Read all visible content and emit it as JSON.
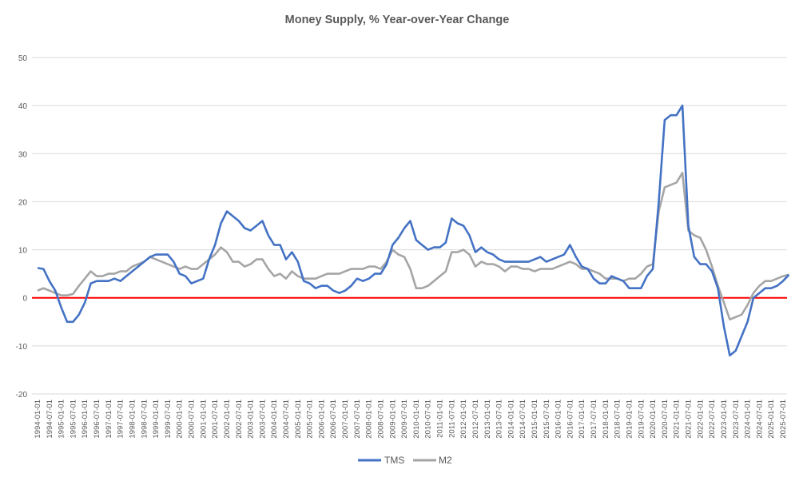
{
  "chart_data": {
    "type": "line",
    "title": "Money Supply, % Year-over-Year Change",
    "xlabel": "",
    "ylabel": "",
    "ylim": [
      -20,
      50
    ],
    "yticks": [
      -20,
      -10,
      0,
      10,
      20,
      30,
      40,
      50
    ],
    "grid": true,
    "legend": "bottom",
    "reference_line": {
      "y": 0,
      "color": "#FF0000"
    },
    "xtick_labels": [
      "1994-01-01",
      "1994-07-01",
      "1995-01-01",
      "1995-07-01",
      "1996-01-01",
      "1996-07-01",
      "1997-01-01",
      "1997-07-01",
      "1998-01-01",
      "1998-07-01",
      "1999-01-01",
      "1999-07-01",
      "2000-01-01",
      "2000-07-01",
      "2001-01-01",
      "2001-07-01",
      "2002-01-01",
      "2002-07-01",
      "2003-01-01",
      "2003-07-01",
      "2004-01-01",
      "2004-07-01",
      "2005-01-01",
      "2005-07-01",
      "2006-01-01",
      "2006-07-01",
      "2007-01-01",
      "2007-07-01",
      "2008-01-01",
      "2008-07-01",
      "2009-01-01",
      "2009-07-01",
      "2010-01-01",
      "2010-07-01",
      "2011-01-01",
      "2011-07-01",
      "2012-01-01",
      "2012-07-01",
      "2013-01-01",
      "2013-07-01",
      "2014-01-01",
      "2014-07-01",
      "2015-01-01",
      "2015-07-01",
      "2016-01-01",
      "2016-07-01",
      "2017-01-01",
      "2017-07-01",
      "2018-01-01",
      "2018-07-01",
      "2019-01-01",
      "2019-07-01",
      "2020-01-01",
      "2020-07-01",
      "2021-01-01",
      "2021-07-01",
      "2022-01-01",
      "2022-07-01",
      "2023-01-01",
      "2023-07-01",
      "2024-01-01",
      "2024-07-01",
      "2025-01-01",
      "2025-07-01"
    ],
    "x": [
      "1994-01-01",
      "1994-04-01",
      "1994-07-01",
      "1994-10-01",
      "1995-01-01",
      "1995-04-01",
      "1995-07-01",
      "1995-10-01",
      "1996-01-01",
      "1996-04-01",
      "1996-07-01",
      "1996-10-01",
      "1997-01-01",
      "1997-04-01",
      "1997-07-01",
      "1997-10-01",
      "1998-01-01",
      "1998-04-01",
      "1998-07-01",
      "1998-10-01",
      "1999-01-01",
      "1999-04-01",
      "1999-07-01",
      "1999-10-01",
      "2000-01-01",
      "2000-04-01",
      "2000-07-01",
      "2000-10-01",
      "2001-01-01",
      "2001-04-01",
      "2001-07-01",
      "2001-10-01",
      "2002-01-01",
      "2002-04-01",
      "2002-07-01",
      "2002-10-01",
      "2003-01-01",
      "2003-04-01",
      "2003-07-01",
      "2003-10-01",
      "2004-01-01",
      "2004-04-01",
      "2004-07-01",
      "2004-10-01",
      "2005-01-01",
      "2005-04-01",
      "2005-07-01",
      "2005-10-01",
      "2006-01-01",
      "2006-04-01",
      "2006-07-01",
      "2006-10-01",
      "2007-01-01",
      "2007-04-01",
      "2007-07-01",
      "2007-10-01",
      "2008-01-01",
      "2008-04-01",
      "2008-07-01",
      "2008-10-01",
      "2009-01-01",
      "2009-04-01",
      "2009-07-01",
      "2009-10-01",
      "2010-01-01",
      "2010-04-01",
      "2010-07-01",
      "2010-10-01",
      "2011-01-01",
      "2011-04-01",
      "2011-07-01",
      "2011-10-01",
      "2012-01-01",
      "2012-04-01",
      "2012-07-01",
      "2012-10-01",
      "2013-01-01",
      "2013-04-01",
      "2013-07-01",
      "2013-10-01",
      "2014-01-01",
      "2014-04-01",
      "2014-07-01",
      "2014-10-01",
      "2015-01-01",
      "2015-04-01",
      "2015-07-01",
      "2015-10-01",
      "2016-01-01",
      "2016-04-01",
      "2016-07-01",
      "2016-10-01",
      "2017-01-01",
      "2017-04-01",
      "2017-07-01",
      "2017-10-01",
      "2018-01-01",
      "2018-04-01",
      "2018-07-01",
      "2018-10-01",
      "2019-01-01",
      "2019-04-01",
      "2019-07-01",
      "2019-10-01",
      "2020-01-01",
      "2020-04-01",
      "2020-07-01",
      "2020-10-01",
      "2021-01-01",
      "2021-04-01",
      "2021-07-01",
      "2021-10-01",
      "2022-01-01",
      "2022-04-01",
      "2022-07-01",
      "2022-10-01",
      "2023-01-01",
      "2023-04-01",
      "2023-07-01",
      "2023-10-01",
      "2024-01-01",
      "2024-04-01",
      "2024-07-01",
      "2024-10-01",
      "2025-01-01",
      "2025-04-01",
      "2025-07-01",
      "2025-10-01"
    ],
    "series": [
      {
        "name": "TMS",
        "color": "#4472C4",
        "values": [
          6.2,
          6,
          3.5,
          1.5,
          -2,
          -5,
          -5,
          -3.5,
          -1,
          3,
          3.5,
          3.5,
          3.5,
          4,
          3.5,
          4.5,
          5.5,
          6.5,
          7.5,
          8.5,
          9,
          9,
          9,
          7.5,
          5,
          4.5,
          3,
          3.5,
          4,
          8,
          11,
          15.5,
          18,
          17,
          16,
          14.5,
          14,
          15,
          16,
          13,
          11,
          11,
          8,
          9.5,
          7.5,
          3.5,
          3,
          2,
          2.5,
          2.5,
          1.5,
          1,
          1.5,
          2.5,
          4,
          3.5,
          4,
          5,
          5,
          7,
          11,
          12.5,
          14.5,
          16,
          12,
          11,
          10,
          10.5,
          10.5,
          11.5,
          16.5,
          15.5,
          15,
          13,
          9.5,
          10.5,
          9.5,
          9,
          8,
          7.5,
          7.5,
          7.5,
          7.5,
          7.5,
          8,
          8.5,
          7.5,
          8,
          8.5,
          9,
          11,
          8.5,
          6.5,
          6,
          4,
          3,
          3,
          4.5,
          4,
          3.5,
          2,
          2,
          2,
          4.5,
          6,
          20,
          37,
          38,
          38,
          40,
          15,
          8.5,
          7,
          7,
          5.5,
          2,
          -6,
          -12,
          -11,
          -8,
          -5,
          0,
          1,
          2,
          2,
          2.5,
          3.5,
          4.8
        ]
      },
      {
        "name": "M2",
        "color": "#A5A5A5",
        "values": [
          1.5,
          2,
          1.5,
          1,
          0.5,
          0.5,
          0.8,
          2.5,
          4,
          5.5,
          4.5,
          4.5,
          5,
          5,
          5.5,
          5.5,
          6.5,
          7,
          7.5,
          8.5,
          8,
          7.5,
          7,
          6.5,
          6,
          6.5,
          6,
          6,
          7,
          8,
          9,
          10.5,
          9.5,
          7.5,
          7.5,
          6.5,
          7,
          8,
          8,
          6,
          4.5,
          5,
          4,
          5.5,
          4.5,
          4,
          4,
          4,
          4.5,
          5,
          5,
          5,
          5.5,
          6,
          6,
          6,
          6.5,
          6.5,
          6,
          7.5,
          10,
          9,
          8.5,
          6,
          2,
          2,
          2.5,
          3.5,
          4.5,
          5.5,
          9.5,
          9.5,
          10,
          9,
          6.5,
          7.5,
          7,
          7,
          6.5,
          5.5,
          6.5,
          6.5,
          6,
          6,
          5.5,
          6,
          6,
          6,
          6.5,
          7,
          7.5,
          7,
          6,
          6,
          5.5,
          5,
          4,
          4,
          4,
          3.5,
          4,
          4,
          5,
          6.5,
          7,
          18,
          23,
          23.5,
          24,
          26,
          14,
          13,
          12.5,
          10,
          6.5,
          2.5,
          -1,
          -4.5,
          -4,
          -3.5,
          -1.5,
          1,
          2.5,
          3.5,
          3.5,
          4,
          4.5,
          4.8
        ]
      }
    ]
  }
}
